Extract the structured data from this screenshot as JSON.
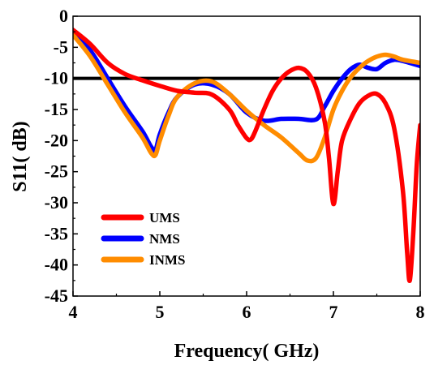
{
  "chart_data": {
    "type": "line",
    "xlabel": "Frequency( GHz)",
    "ylabel": "S11( dB)",
    "xlim": [
      4,
      8
    ],
    "ylim": [
      -45,
      0
    ],
    "xticks": [
      4,
      5,
      6,
      7,
      8
    ],
    "yticks": [
      0,
      -5,
      -10,
      -15,
      -20,
      -25,
      -30,
      -35,
      -40,
      -45
    ],
    "grid": false,
    "legend_position": "bottom-left",
    "reference_line": {
      "y": -10,
      "color": "#000000"
    },
    "series": [
      {
        "name": "UMS",
        "color": "#ff0000",
        "x": [
          4.0,
          4.2,
          4.4,
          4.6,
          4.8,
          5.0,
          5.2,
          5.4,
          5.6,
          5.8,
          5.9,
          6.0,
          6.05,
          6.1,
          6.2,
          6.3,
          6.4,
          6.5,
          6.6,
          6.7,
          6.8,
          6.9,
          6.95,
          7.0,
          7.05,
          7.1,
          7.2,
          7.3,
          7.4,
          7.5,
          7.6,
          7.7,
          7.8,
          7.85,
          7.88,
          7.92,
          7.96,
          8.0
        ],
        "y": [
          -2.2,
          -4.5,
          -7.5,
          -9.3,
          -10.3,
          -11.2,
          -12.0,
          -12.3,
          -12.6,
          -15.0,
          -17.5,
          -19.6,
          -19.8,
          -18.5,
          -15.0,
          -12.0,
          -10.0,
          -8.8,
          -8.3,
          -9.0,
          -11.5,
          -17.0,
          -23.0,
          -30.2,
          -25.0,
          -20.0,
          -16.5,
          -14.0,
          -12.8,
          -12.5,
          -14.0,
          -18.0,
          -28.0,
          -38.0,
          -42.5,
          -35.0,
          -24.0,
          -17.5
        ]
      },
      {
        "name": "NMS",
        "color": "#0000ff",
        "x": [
          4.0,
          4.2,
          4.4,
          4.6,
          4.8,
          4.9,
          4.95,
          5.0,
          5.1,
          5.2,
          5.4,
          5.6,
          5.8,
          6.0,
          6.2,
          6.4,
          6.6,
          6.8,
          6.9,
          7.0,
          7.1,
          7.2,
          7.3,
          7.4,
          7.5,
          7.6,
          7.7,
          7.8,
          8.0
        ],
        "y": [
          -2.5,
          -5.5,
          -10.0,
          -14.5,
          -18.5,
          -21.0,
          -21.5,
          -19.0,
          -15.5,
          -13.0,
          -11.0,
          -11.0,
          -12.5,
          -15.5,
          -16.8,
          -16.5,
          -16.5,
          -16.6,
          -14.5,
          -12.0,
          -10.0,
          -8.5,
          -7.8,
          -8.3,
          -8.5,
          -7.5,
          -7.0,
          -7.2,
          -8.0
        ]
      },
      {
        "name": "INMS",
        "color": "#ff8c00",
        "x": [
          4.0,
          4.2,
          4.4,
          4.6,
          4.8,
          4.9,
          4.95,
          5.0,
          5.1,
          5.2,
          5.4,
          5.6,
          5.8,
          6.0,
          6.2,
          6.4,
          6.6,
          6.7,
          6.8,
          6.9,
          7.0,
          7.1,
          7.2,
          7.3,
          7.4,
          7.5,
          7.6,
          7.7,
          7.8,
          8.0
        ],
        "y": [
          -3.0,
          -6.5,
          -11.0,
          -15.5,
          -19.5,
          -22.0,
          -22.3,
          -20.0,
          -16.0,
          -13.0,
          -10.8,
          -10.5,
          -12.5,
          -15.2,
          -17.5,
          -19.5,
          -22.0,
          -23.2,
          -22.8,
          -19.5,
          -15.0,
          -12.0,
          -9.8,
          -8.3,
          -7.2,
          -6.5,
          -6.2,
          -6.5,
          -7.0,
          -7.5
        ]
      }
    ]
  }
}
